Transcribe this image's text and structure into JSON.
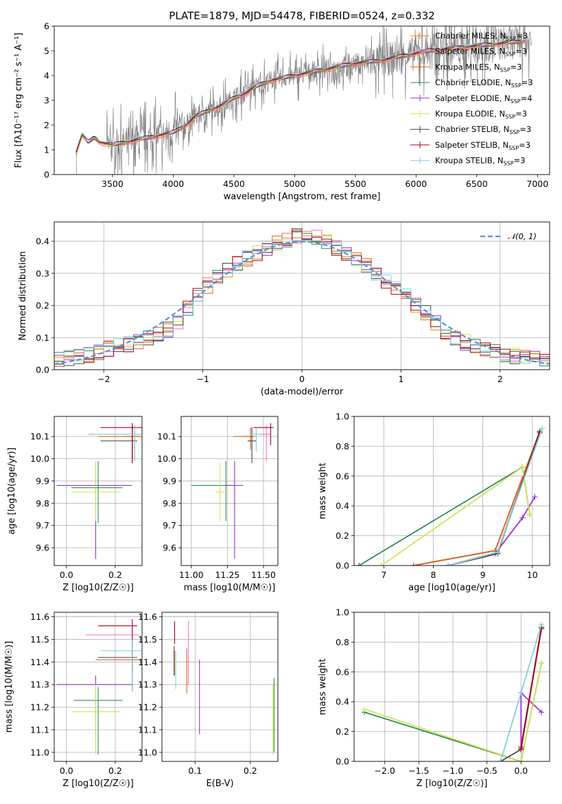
{
  "title": "PLATE=1879, MJD=54478, FIBERID=0524, z=0.332",
  "colors": {
    "Chabrier MILES": "#ff7f0e",
    "Salpeter MILES": "#ff6eb4",
    "Kroupa MILES": "#d2691e",
    "Chabrier ELODIE": "#2e8b57",
    "Salpeter ELODIE": "#9932cc",
    "Kroupa ELODIE": "#d4e157",
    "Chabrier STELIB": "#444444",
    "Salpeter STELIB": "#a50021",
    "Kroupa STELIB": "#7fd3e0",
    "data": "#808080",
    "normal": "#5b8ee0"
  },
  "legend_spectrum": [
    {
      "model": "Chabrier MILES",
      "nssp": "3"
    },
    {
      "model": "Salpeter MILES",
      "nssp": "3"
    },
    {
      "model": "Kroupa MILES",
      "nssp": "3"
    },
    {
      "model": "Chabrier ELODIE",
      "nssp": "3"
    },
    {
      "model": "Salpeter ELODIE",
      "nssp": "4"
    },
    {
      "model": "Kroupa ELODIE",
      "nssp": "3"
    },
    {
      "model": "Chabrier STELIB",
      "nssp": "3"
    },
    {
      "model": "Salpeter STELIB",
      "nssp": "3"
    },
    {
      "model": "Kroupa STELIB",
      "nssp": "3"
    }
  ],
  "chart_data": [
    {
      "id": "spectrum",
      "type": "line",
      "xlabel": "wavelength [Angstrom, rest frame]",
      "ylabel": "Flux [fλ10⁻¹⁷ erg cm⁻² s⁻¹ A⁻¹]",
      "xlim": [
        3020,
        7100
      ],
      "ylim": [
        0,
        6
      ],
      "xticks": [
        3500,
        4000,
        4500,
        5000,
        5500,
        6000,
        6500,
        7000
      ],
      "yticks": [
        0,
        1,
        2,
        3,
        4,
        5,
        6
      ],
      "model_continuum": {
        "x": [
          3200,
          3250,
          3300,
          3350,
          3400,
          3500,
          3600,
          3700,
          3800,
          3900,
          4000,
          4100,
          4200,
          4300,
          4400,
          4500,
          4600,
          4700,
          4800,
          4900,
          5000,
          5100,
          5200,
          5300,
          5400,
          5500,
          5600,
          5700,
          5800,
          5900,
          6000,
          6100,
          6200,
          6300,
          6400,
          6500,
          6600,
          6700,
          6800,
          6900
        ],
        "y": [
          0.9,
          1.6,
          1.3,
          1.5,
          1.3,
          1.2,
          1.3,
          1.4,
          1.5,
          1.6,
          1.7,
          2.0,
          2.4,
          2.6,
          2.8,
          3.1,
          3.3,
          3.6,
          3.8,
          3.9,
          4.0,
          4.1,
          4.2,
          4.3,
          4.4,
          4.5,
          4.55,
          4.6,
          4.7,
          4.8,
          4.9,
          5.0,
          5.05,
          5.1,
          5.15,
          5.2,
          5.25,
          5.3,
          5.35,
          5.4
        ]
      },
      "series": [
        "Chabrier MILES",
        "Salpeter MILES",
        "Kroupa MILES",
        "Chabrier ELODIE",
        "Salpeter ELODIE",
        "Kroupa ELODIE",
        "Chabrier STELIB",
        "Salpeter STELIB",
        "Kroupa STELIB"
      ]
    },
    {
      "id": "residuals",
      "type": "step-histogram",
      "xlabel": "(data-model)/error",
      "ylabel": "Normed distribution",
      "xlim": [
        -2.5,
        2.5
      ],
      "ylim": [
        0,
        0.46
      ],
      "xticks": [
        -2,
        -1,
        0,
        1,
        2
      ],
      "yticks": [
        0.0,
        0.1,
        0.2,
        0.3,
        0.4
      ],
      "grid": true,
      "legend": "$\\mathcal{N}(0,1)$",
      "legend_label": "𝒩(0, 1)",
      "bin_width": 0.1,
      "profile_x": [
        -2.5,
        -2.2,
        -1.9,
        -1.6,
        -1.3,
        -1.0,
        -0.8,
        -0.6,
        -0.4,
        -0.2,
        0.0,
        0.2,
        0.4,
        0.6,
        0.8,
        1.0,
        1.2,
        1.4,
        1.6,
        1.8,
        2.0,
        2.2,
        2.5
      ],
      "profile_y": [
        0.03,
        0.04,
        0.07,
        0.09,
        0.13,
        0.25,
        0.3,
        0.34,
        0.37,
        0.4,
        0.42,
        0.41,
        0.37,
        0.34,
        0.29,
        0.24,
        0.19,
        0.13,
        0.09,
        0.07,
        0.05,
        0.04,
        0.03
      ]
    },
    {
      "id": "age_vs_Z",
      "type": "errorbar",
      "xlabel": "Z [log10(Z/Z☉)]",
      "ylabel": "age  [log10(age/yr)]",
      "xlim": [
        -0.05,
        0.31
      ],
      "ylim": [
        9.52,
        10.19
      ],
      "xticks": [
        0.0,
        0.2
      ],
      "yticks": [
        9.6,
        9.7,
        9.8,
        9.9,
        10.0,
        10.1
      ],
      "points": [
        {
          "s": "Chabrier MILES",
          "x": 0.27,
          "y": 10.1,
          "xe": [
            0.03,
            0.03
          ],
          "ye": [
            0.1,
            0.06
          ]
        },
        {
          "s": "Salpeter MILES",
          "x": 0.28,
          "y": 10.11,
          "xe": [
            0.19,
            0.02
          ],
          "ye": [
            0.12,
            0.04
          ]
        },
        {
          "s": "Kroupa MILES",
          "x": 0.27,
          "y": 10.1,
          "xe": [
            0.14,
            0.04
          ],
          "ye": [
            0.1,
            0.04
          ]
        },
        {
          "s": "Chabrier ELODIE",
          "x": 0.13,
          "y": 9.87,
          "xe": [
            0.11,
            0.1
          ],
          "ye": [
            0.16,
            0.12
          ]
        },
        {
          "s": "Salpeter ELODIE",
          "x": 0.12,
          "y": 9.88,
          "xe": [
            0.16,
            0.15
          ],
          "ye": [
            0.33,
            0.1
          ]
        },
        {
          "s": "Kroupa ELODIE",
          "x": 0.12,
          "y": 9.85,
          "xe": [
            0.1,
            0.1
          ],
          "ye": [
            0.13,
            0.14
          ]
        },
        {
          "s": "Chabrier STELIB",
          "x": 0.27,
          "y": 10.08,
          "xe": [
            0.13,
            0.02
          ],
          "ye": [
            0.1,
            0.07
          ]
        },
        {
          "s": "Salpeter STELIB",
          "x": 0.27,
          "y": 10.14,
          "xe": [
            0.13,
            0.04
          ],
          "ye": [
            0.16,
            0.02
          ]
        },
        {
          "s": "Kroupa STELIB",
          "x": 0.28,
          "y": 10.11,
          "xe": [
            0.17,
            0.04
          ],
          "ye": [
            0.12,
            0.04
          ]
        }
      ]
    },
    {
      "id": "age_vs_mass",
      "type": "errorbar",
      "xlabel": "mass [log10(M/M☉)]",
      "ylabel": "",
      "xlim": [
        10.93,
        11.6
      ],
      "ylim": [
        9.52,
        10.19
      ],
      "xticks": [
        11.0,
        11.25,
        11.5
      ],
      "yticks": [
        9.6,
        9.7,
        9.8,
        9.9,
        10.0,
        10.1
      ],
      "points": [
        {
          "s": "Chabrier MILES",
          "x": 11.41,
          "y": 10.1,
          "xe": [
            0.05,
            0.03
          ],
          "ye": [
            0.05,
            0.04
          ]
        },
        {
          "s": "Salpeter MILES",
          "x": 11.52,
          "y": 10.11,
          "xe": [
            0.1,
            0.03
          ],
          "ye": [
            0.12,
            0.04
          ]
        },
        {
          "s": "Kroupa MILES",
          "x": 11.41,
          "y": 10.1,
          "xe": [
            0.12,
            0.03
          ],
          "ye": [
            0.06,
            0.04
          ]
        },
        {
          "s": "Chabrier ELODIE",
          "x": 11.24,
          "y": 9.88,
          "xe": [
            0.24,
            0.05
          ],
          "ye": [
            0.16,
            0.11
          ]
        },
        {
          "s": "Salpeter ELODIE",
          "x": 11.3,
          "y": 9.88,
          "xe": [
            0.06,
            0.06
          ],
          "ye": [
            0.33,
            0.11
          ]
        },
        {
          "s": "Kroupa ELODIE",
          "x": 11.2,
          "y": 9.85,
          "xe": [
            0.03,
            0.03
          ],
          "ye": [
            0.13,
            0.13
          ]
        },
        {
          "s": "Chabrier STELIB",
          "x": 11.42,
          "y": 10.08,
          "xe": [
            0.03,
            0.03
          ],
          "ye": [
            0.1,
            0.06
          ]
        },
        {
          "s": "Salpeter STELIB",
          "x": 11.55,
          "y": 10.14,
          "xe": [
            0.12,
            0.02
          ],
          "ye": [
            0.08,
            0.02
          ]
        },
        {
          "s": "Kroupa STELIB",
          "x": 11.45,
          "y": 10.11,
          "xe": [
            0.05,
            0.03
          ],
          "ye": [
            0.08,
            0.03
          ]
        }
      ]
    },
    {
      "id": "massweight_vs_age",
      "type": "line",
      "xlabel": "age  [log10(age/yr)]",
      "ylabel": "mass weight",
      "xlim": [
        6.4,
        10.35
      ],
      "ylim": [
        0,
        1
      ],
      "xticks": [
        7,
        8,
        9,
        10
      ],
      "yticks": [
        0.0,
        0.2,
        0.4,
        0.6,
        0.8,
        1.0
      ],
      "series": [
        {
          "name": "Chabrier MILES",
          "x": [
            7.6,
            9.25,
            10.15
          ],
          "y": [
            0.0,
            0.1,
            0.9
          ]
        },
        {
          "name": "Salpeter MILES",
          "x": [
            7.6,
            9.25,
            10.15
          ],
          "y": [
            0.0,
            0.1,
            0.9
          ]
        },
        {
          "name": "Kroupa MILES",
          "x": [
            7.6,
            9.25,
            10.15
          ],
          "y": [
            0.0,
            0.1,
            0.9
          ]
        },
        {
          "name": "Chabrier ELODIE",
          "x": [
            6.5,
            9.8,
            9.95
          ],
          "y": [
            0.0,
            0.66,
            0.34
          ]
        },
        {
          "name": "Salpeter ELODIE",
          "x": [
            9.25,
            9.8,
            10.05
          ],
          "y": [
            0.08,
            0.32,
            0.46
          ]
        },
        {
          "name": "Kroupa ELODIE",
          "x": [
            6.95,
            9.8,
            9.95
          ],
          "y": [
            0.0,
            0.66,
            0.34
          ]
        },
        {
          "name": "Chabrier STELIB",
          "x": [
            8.3,
            9.3,
            10.15
          ],
          "y": [
            0.0,
            0.08,
            0.9
          ]
        },
        {
          "name": "Salpeter STELIB",
          "x": [
            8.3,
            9.3,
            10.15
          ],
          "y": [
            0.0,
            0.09,
            0.89
          ]
        },
        {
          "name": "Kroupa STELIB",
          "x": [
            8.3,
            9.3,
            10.2
          ],
          "y": [
            0.0,
            0.09,
            0.92
          ]
        }
      ]
    },
    {
      "id": "mass_vs_Z",
      "type": "errorbar",
      "xlabel": "Z [log10(Z/Z☉)]",
      "ylabel": "mass [log10(M/M☉)]",
      "xlim": [
        -0.05,
        0.31
      ],
      "ylim": [
        10.96,
        11.62
      ],
      "xticks": [
        0.0,
        0.2
      ],
      "yticks": [
        11.0,
        11.1,
        11.2,
        11.3,
        11.4,
        11.5,
        11.6
      ],
      "points": [
        {
          "s": "Chabrier MILES",
          "x": 0.27,
          "y": 11.41,
          "xe": [
            0.08,
            0.04
          ],
          "ye": [
            0.05,
            0.04
          ]
        },
        {
          "s": "Salpeter MILES",
          "x": 0.27,
          "y": 11.52,
          "xe": [
            0.19,
            0.03
          ],
          "ye": [
            0.05,
            0.04
          ]
        },
        {
          "s": "Kroupa MILES",
          "x": 0.27,
          "y": 11.41,
          "xe": [
            0.15,
            0.04
          ],
          "ye": [
            0.05,
            0.04
          ]
        },
        {
          "s": "Chabrier ELODIE",
          "x": 0.13,
          "y": 11.23,
          "xe": [
            0.1,
            0.1
          ],
          "ye": [
            0.24,
            0.06
          ]
        },
        {
          "s": "Salpeter ELODIE",
          "x": 0.12,
          "y": 11.3,
          "xe": [
            0.16,
            0.15
          ],
          "ye": [
            0.23,
            0.04
          ]
        },
        {
          "s": "Kroupa ELODIE",
          "x": 0.12,
          "y": 11.18,
          "xe": [
            0.1,
            0.1
          ],
          "ye": [
            0.19,
            0.12
          ]
        },
        {
          "s": "Chabrier STELIB",
          "x": 0.27,
          "y": 11.42,
          "xe": [
            0.14,
            0.02
          ],
          "ye": [
            0.15,
            0.04
          ]
        },
        {
          "s": "Salpeter STELIB",
          "x": 0.27,
          "y": 11.56,
          "xe": [
            0.14,
            0.02
          ],
          "ye": [
            0.1,
            0.03
          ]
        },
        {
          "s": "Kroupa STELIB",
          "x": 0.27,
          "y": 11.45,
          "xe": [
            0.13,
            0.04
          ],
          "ye": [
            0.18,
            0.05
          ]
        }
      ]
    },
    {
      "id": "mass_vs_ebv",
      "type": "errorbar",
      "xlabel": "E(B-V)",
      "ylabel": "",
      "xlim": [
        0.04,
        0.25
      ],
      "ylim": [
        10.96,
        11.62
      ],
      "xticks": [
        0.1,
        0.2
      ],
      "yticks": [
        11.0,
        11.1,
        11.2,
        11.3,
        11.4,
        11.5,
        11.6
      ],
      "points": [
        {
          "s": "Chabrier MILES",
          "x": 0.063,
          "y": 11.41,
          "xe": [
            0,
            0
          ],
          "ye": [
            0.07,
            0.04
          ]
        },
        {
          "s": "Salpeter MILES",
          "x": 0.088,
          "y": 11.52,
          "xe": [
            0,
            0
          ],
          "ye": [
            0.22,
            0.06
          ]
        },
        {
          "s": "Kroupa MILES",
          "x": 0.085,
          "y": 11.41,
          "xe": [
            0,
            0
          ],
          "ye": [
            0.15,
            0.05
          ]
        },
        {
          "s": "Chabrier ELODIE",
          "x": 0.243,
          "y": 11.24,
          "xe": [
            0,
            0
          ],
          "ye": [
            0.24,
            0.09
          ]
        },
        {
          "s": "Salpeter ELODIE",
          "x": 0.108,
          "y": 11.29,
          "xe": [
            0,
            0
          ],
          "ye": [
            0.21,
            0.12
          ]
        },
        {
          "s": "Kroupa ELODIE",
          "x": 0.241,
          "y": 11.18,
          "xe": [
            0,
            0
          ],
          "ye": [
            0.19,
            0.12
          ]
        },
        {
          "s": "Chabrier STELIB",
          "x": 0.062,
          "y": 11.42,
          "xe": [
            0,
            0
          ],
          "ye": [
            0.08,
            0.05
          ]
        },
        {
          "s": "Salpeter STELIB",
          "x": 0.063,
          "y": 11.56,
          "xe": [
            0,
            0
          ],
          "ye": [
            0.08,
            0.02
          ]
        },
        {
          "s": "Kroupa STELIB",
          "x": 0.065,
          "y": 11.4,
          "xe": [
            0,
            0
          ],
          "ye": [
            0.12,
            0.05
          ]
        }
      ]
    },
    {
      "id": "massweight_vs_Z",
      "type": "line",
      "xlabel": "Z [log10(Z/Z☉)]",
      "ylabel": "mass weight",
      "xlim": [
        -2.45,
        0.42
      ],
      "ylim": [
        0,
        1
      ],
      "xticks": [
        -2.0,
        -1.5,
        -1.0,
        -0.5,
        0.0
      ],
      "yticks": [
        0.0,
        0.2,
        0.4,
        0.6,
        0.8,
        1.0
      ],
      "series": [
        {
          "name": "Chabrier MILES",
          "x": [
            0.0,
            0.3
          ],
          "y": [
            0.1,
            0.9
          ]
        },
        {
          "name": "Salpeter MILES",
          "x": [
            0.0,
            0.3
          ],
          "y": [
            0.1,
            0.9
          ]
        },
        {
          "name": "Kroupa MILES",
          "x": [
            0.0,
            0.3
          ],
          "y": [
            0.1,
            0.9
          ]
        },
        {
          "name": "Chabrier ELODIE",
          "x": [
            -2.3,
            0.0,
            0.3
          ],
          "y": [
            0.33,
            0.0,
            0.66
          ]
        },
        {
          "name": "Salpeter ELODIE",
          "x": [
            0.0,
            0.0,
            0.3
          ],
          "y": [
            0.08,
            0.46,
            0.33
          ]
        },
        {
          "name": "Kroupa ELODIE",
          "x": [
            -2.3,
            0.0,
            0.3
          ],
          "y": [
            0.35,
            0.0,
            0.66
          ]
        },
        {
          "name": "Chabrier STELIB",
          "x": [
            -0.3,
            0.0,
            0.3
          ],
          "y": [
            0.0,
            0.08,
            0.9
          ]
        },
        {
          "name": "Salpeter STELIB",
          "x": [
            0.0,
            0.3
          ],
          "y": [
            0.09,
            0.89
          ]
        },
        {
          "name": "Kroupa STELIB",
          "x": [
            -0.3,
            0.0,
            0.3
          ],
          "y": [
            0.0,
            0.46,
            0.92
          ]
        }
      ]
    }
  ]
}
